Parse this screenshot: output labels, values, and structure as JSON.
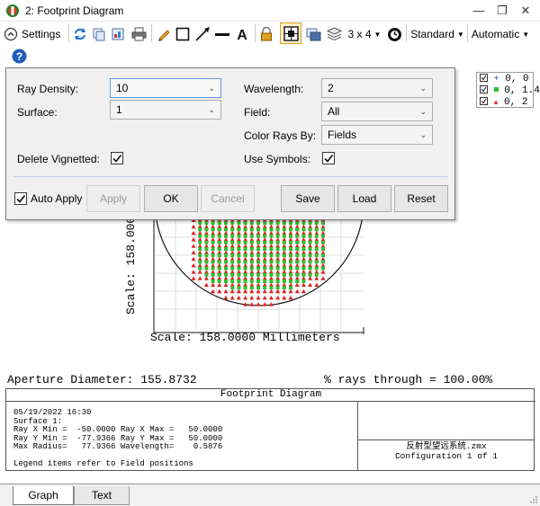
{
  "window": {
    "title": "2: Footprint Diagram"
  },
  "toolbar": {
    "settings_label": "Settings",
    "layout_label": "3 x 4",
    "standard_label": "Standard",
    "automatic_label": "Automatic"
  },
  "settings": {
    "ray_density_label": "Ray Density:",
    "ray_density_value": "10",
    "surface_label": "Surface:",
    "surface_value": "1",
    "wavelength_label": "Wavelength:",
    "wavelength_value": "2",
    "field_label": "Field:",
    "field_value": "All",
    "color_rays_label": "Color Rays By:",
    "color_rays_value": "Fields",
    "delete_vignetted_label": "Delete Vignetted:",
    "delete_vignetted_checked": true,
    "use_symbols_label": "Use Symbols:",
    "use_symbols_checked": true,
    "auto_apply_label": "Auto Apply",
    "auto_apply_checked": true,
    "apply_label": "Apply",
    "ok_label": "OK",
    "cancel_label": "Cancel",
    "save_label": "Save",
    "load_label": "Load",
    "reset_label": "Reset"
  },
  "legend": {
    "items": [
      {
        "label": "0, 0",
        "color": "#2a5db0"
      },
      {
        "label": "0, 1.4",
        "color": "#2fbf2f"
      },
      {
        "label": "0, 2",
        "color": "#dd2222"
      }
    ]
  },
  "plot": {
    "y_scale_label": "Scale: 158.0000",
    "x_scale_label": "Scale: 158.0000 Millimeters",
    "aperture_label": "Aperture Diameter: 155.8732",
    "rays_through_label": "% rays through = 100.00%"
  },
  "info": {
    "title": "Footprint Diagram",
    "lines": [
      "05/19/2022 16:30",
      "Surface 1:",
      "Ray X Min =  -50.0000 Ray X Max =   50.0000",
      "Ray Y Min =  -77.9366 Ray Y Max =   50.0000",
      "Max Radius=   77.9366 Wavelength=    0.5876",
      "",
      "Legend items refer to Field positions"
    ],
    "file_name": "反射型望远系统.zmx",
    "configuration": "Configuration 1 of 1"
  },
  "tabs": [
    {
      "label": "Graph",
      "active": true
    },
    {
      "label": "Text",
      "active": false
    }
  ]
}
